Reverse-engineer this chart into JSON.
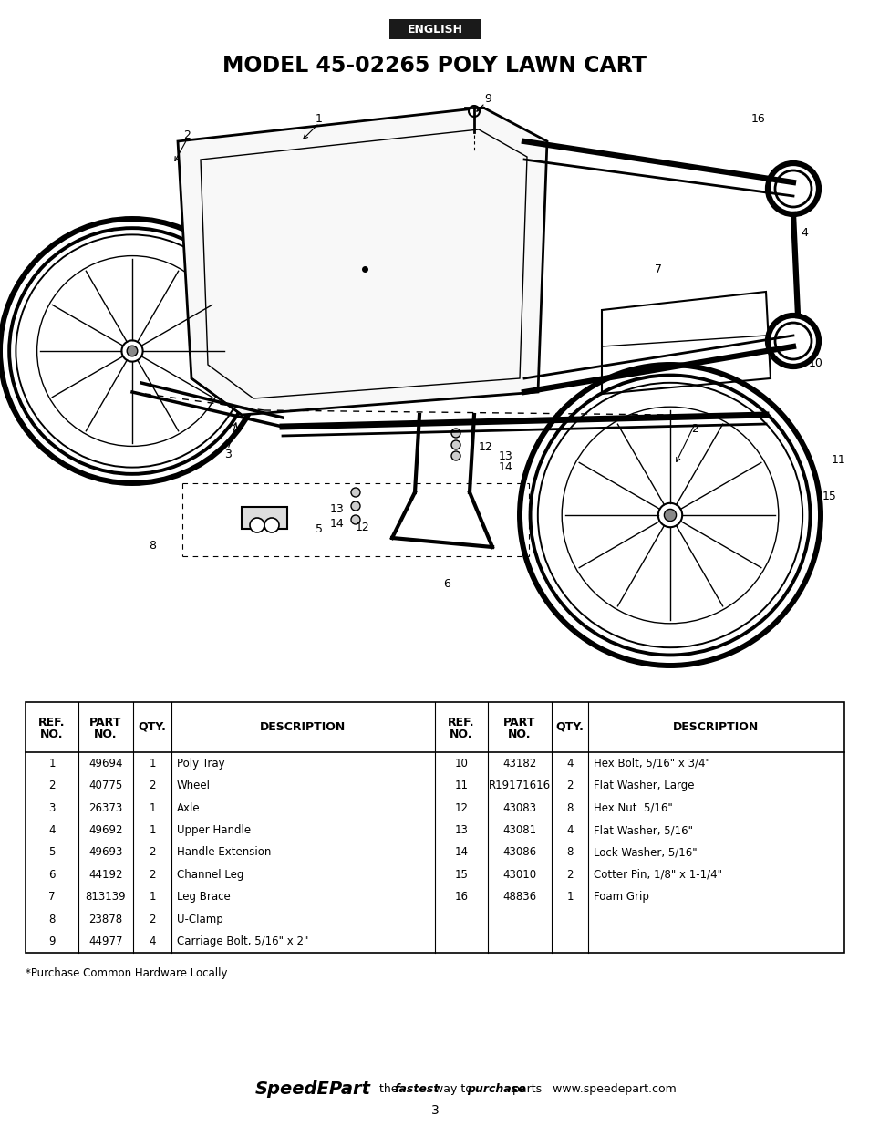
{
  "page_bg": "#ffffff",
  "english_label": "ENGLISH",
  "english_bg": "#1a1a1a",
  "english_color": "#ffffff",
  "title": "MODEL 45-02265 POLY LAWN CART",
  "left_parts": [
    [
      "1",
      "49694",
      "1",
      "Poly Tray"
    ],
    [
      "2",
      "40775",
      "2",
      "Wheel"
    ],
    [
      "3",
      "26373",
      "1",
      "Axle"
    ],
    [
      "4",
      "49692",
      "1",
      "Upper Handle"
    ],
    [
      "5",
      "49693",
      "2",
      "Handle Extension"
    ],
    [
      "6",
      "44192",
      "2",
      "Channel Leg"
    ],
    [
      "7",
      "813139",
      "1",
      "Leg Brace"
    ],
    [
      "8",
      "23878",
      "2",
      "U-Clamp"
    ],
    [
      "9",
      "44977",
      "4",
      "Carriage Bolt, 5/16\" x 2\""
    ]
  ],
  "right_parts": [
    [
      "10",
      "43182",
      "4",
      "Hex Bolt, 5/16\" x 3/4\""
    ],
    [
      "11",
      "R19171616",
      "2",
      "Flat Washer, Large"
    ],
    [
      "12",
      "43083",
      "8",
      "Hex Nut. 5/16\""
    ],
    [
      "13",
      "43081",
      "4",
      "Flat Washer, 5/16\""
    ],
    [
      "14",
      "43086",
      "8",
      "Lock Washer, 5/16\""
    ],
    [
      "15",
      "43010",
      "2",
      "Cotter Pin, 1/8\" x 1-1/4\""
    ],
    [
      "16",
      "48836",
      "1",
      "Foam Grip"
    ]
  ],
  "footnote": "*Purchase Common Hardware Locally.",
  "footer_page": "3"
}
